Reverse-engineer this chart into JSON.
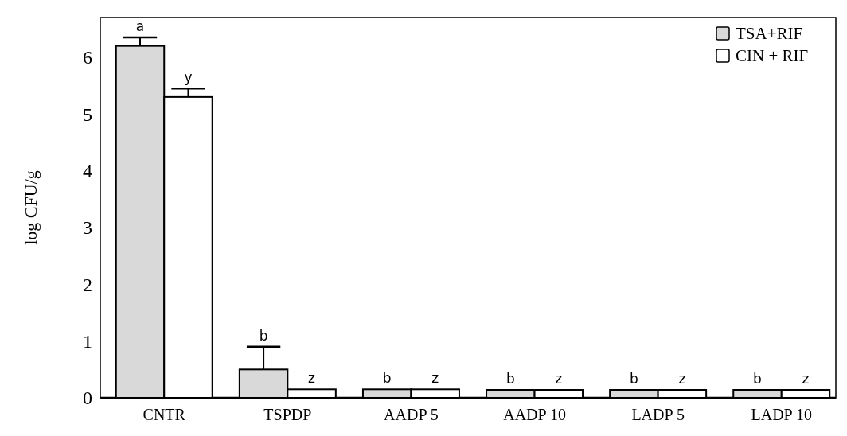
{
  "chart_data": {
    "type": "bar",
    "ylabel": "log CFU/g",
    "categories": [
      "CNTR",
      "TSPDP",
      "AADP 5",
      "AADP 10",
      "LADP 5",
      "LADP 10"
    ],
    "series": [
      {
        "name": "TSA+RIF",
        "color": "#d9d9d9",
        "values": [
          6.2,
          0.5,
          0.15,
          0.14,
          0.14,
          0.14
        ],
        "errors": [
          0.15,
          0.4,
          null,
          null,
          null,
          null
        ]
      },
      {
        "name": "CIN + RIF",
        "color": "#ffffff",
        "values": [
          5.3,
          0.15,
          0.15,
          0.14,
          0.14,
          0.14
        ],
        "errors": [
          0.15,
          null,
          null,
          null,
          null,
          null
        ]
      }
    ],
    "ylim": [
      0,
      6.7
    ],
    "yticks": [
      0,
      1,
      2,
      3,
      4,
      5,
      6
    ],
    "grid": false,
    "legend": "top right",
    "annotations": [
      {
        "text": "a",
        "x": "CNTR",
        "y": 6.2
      },
      {
        "text": "y",
        "x": "CNTR",
        "y": 5.3
      },
      {
        "text": "b",
        "x": "TSPDP",
        "y": 0.5
      },
      {
        "text": "z",
        "x": "TSPDP",
        "y": 0.15
      },
      {
        "text": "b",
        "x": "AADP 5",
        "y": 0.15
      },
      {
        "text": "z",
        "x": "AADP 5",
        "y": 0.15
      },
      {
        "text": "b",
        "x": "AADP 10",
        "y": 0.14
      },
      {
        "text": "z",
        "x": "AADP 10",
        "y": 0.14
      },
      {
        "text": "b",
        "x": "LADP 5",
        "y": 0.14
      },
      {
        "text": "z",
        "x": "LADP 5",
        "y": 0.14
      },
      {
        "text": "b",
        "x": "LADP 10",
        "y": 0.14
      },
      {
        "text": "z",
        "x": "LADP 10",
        "y": 0.14
      }
    ]
  }
}
